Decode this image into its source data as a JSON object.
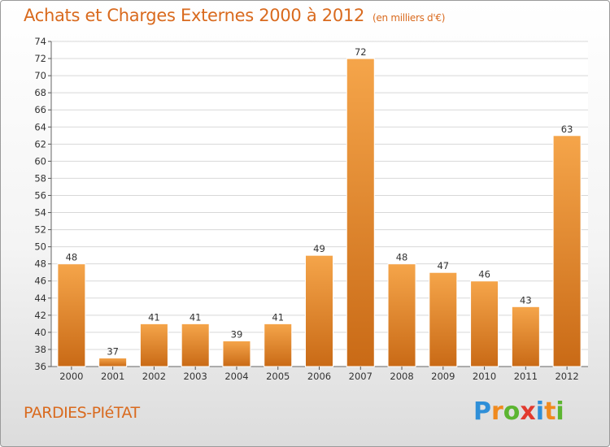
{
  "title": "Achats et Charges Externes 2000 à 2012",
  "unit": "(en milliers d'€)",
  "commune": "PARDIES-PIéTAT",
  "logo": {
    "letters": [
      "P",
      "r",
      "o",
      "x",
      "i",
      "t",
      "i"
    ],
    "colors": [
      "#2f8fd8",
      "#f08a1e",
      "#5cb531",
      "#e23a2e",
      "#2f8fd8",
      "#f08a1e",
      "#5cb531"
    ]
  },
  "colors": {
    "bar_light": "#f5a54a",
    "bar_dark": "#c96a16",
    "accent": "#d96a1e"
  },
  "chart_data": {
    "type": "bar",
    "categories": [
      "2000",
      "2001",
      "2002",
      "2003",
      "2004",
      "2005",
      "2006",
      "2007",
      "2008",
      "2009",
      "2010",
      "2011",
      "2012"
    ],
    "values": [
      48,
      37,
      41,
      41,
      39,
      41,
      49,
      72,
      48,
      47,
      46,
      43,
      63
    ],
    "title": "Achats et Charges Externes 2000 à 2012",
    "xlabel": "",
    "ylabel": "",
    "ylim": [
      36,
      74
    ],
    "yticks": [
      36,
      38,
      40,
      42,
      44,
      46,
      48,
      50,
      52,
      54,
      56,
      58,
      60,
      62,
      64,
      66,
      68,
      70,
      72,
      74
    ],
    "grid": true,
    "data_labels": true
  }
}
